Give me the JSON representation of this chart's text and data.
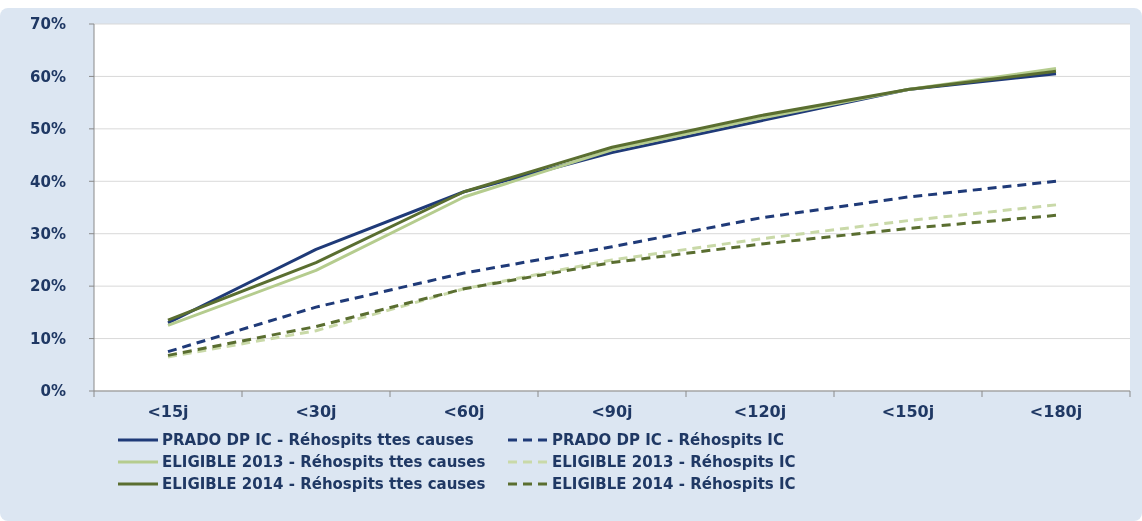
{
  "chart_data": {
    "type": "line",
    "categories": [
      "<15j",
      "<30j",
      "<60j",
      "<90j",
      "<120j",
      "<150j",
      "<180j"
    ],
    "ylim": [
      0,
      70
    ],
    "yticks": [
      {
        "value": 0,
        "label": "0%"
      },
      {
        "value": 10,
        "label": "10%"
      },
      {
        "value": 20,
        "label": "20%"
      },
      {
        "value": 30,
        "label": "30%"
      },
      {
        "value": 40,
        "label": "40%"
      },
      {
        "value": 50,
        "label": "50%"
      },
      {
        "value": 60,
        "label": "60%"
      },
      {
        "value": 70,
        "label": "70%"
      }
    ],
    "grid": "y",
    "legend": "bottom",
    "marker": "none",
    "series": [
      {
        "name": "PRADO DP IC - Réhospits ttes causes",
        "color": "#1f3a78",
        "line_style": "solid",
        "values": [
          13,
          27,
          38,
          45.5,
          51.5,
          57.5,
          60.5
        ]
      },
      {
        "name": "PRADO DP IC - Réhospits IC",
        "color": "#1f3a78",
        "line_style": "dashed",
        "values": [
          7.5,
          16,
          22.5,
          27.5,
          33,
          37,
          40
        ]
      },
      {
        "name": "ELIGIBLE 2013 - Réhospits ttes causes",
        "color": "#b5cc8e",
        "line_style": "solid",
        "values": [
          12.5,
          23,
          37,
          46,
          52,
          57.5,
          61.5
        ]
      },
      {
        "name": "ELIGIBLE 2013 - Réhospits IC",
        "color": "#c9d9a8",
        "line_style": "dashed",
        "values": [
          6.5,
          11.5,
          19.5,
          25,
          29,
          32.5,
          35.5
        ]
      },
      {
        "name": "ELIGIBLE 2014 - Réhospits ttes causes",
        "color": "#5a6e30",
        "line_style": "solid",
        "values": [
          13.5,
          24.5,
          38,
          46.5,
          52.5,
          57.5,
          61
        ]
      },
      {
        "name": "ELIGIBLE 2014 - Réhospits IC",
        "color": "#5a6e30",
        "line_style": "dashed",
        "values": [
          6.8,
          12.3,
          19.5,
          24.5,
          28,
          31,
          33.5
        ]
      }
    ]
  }
}
